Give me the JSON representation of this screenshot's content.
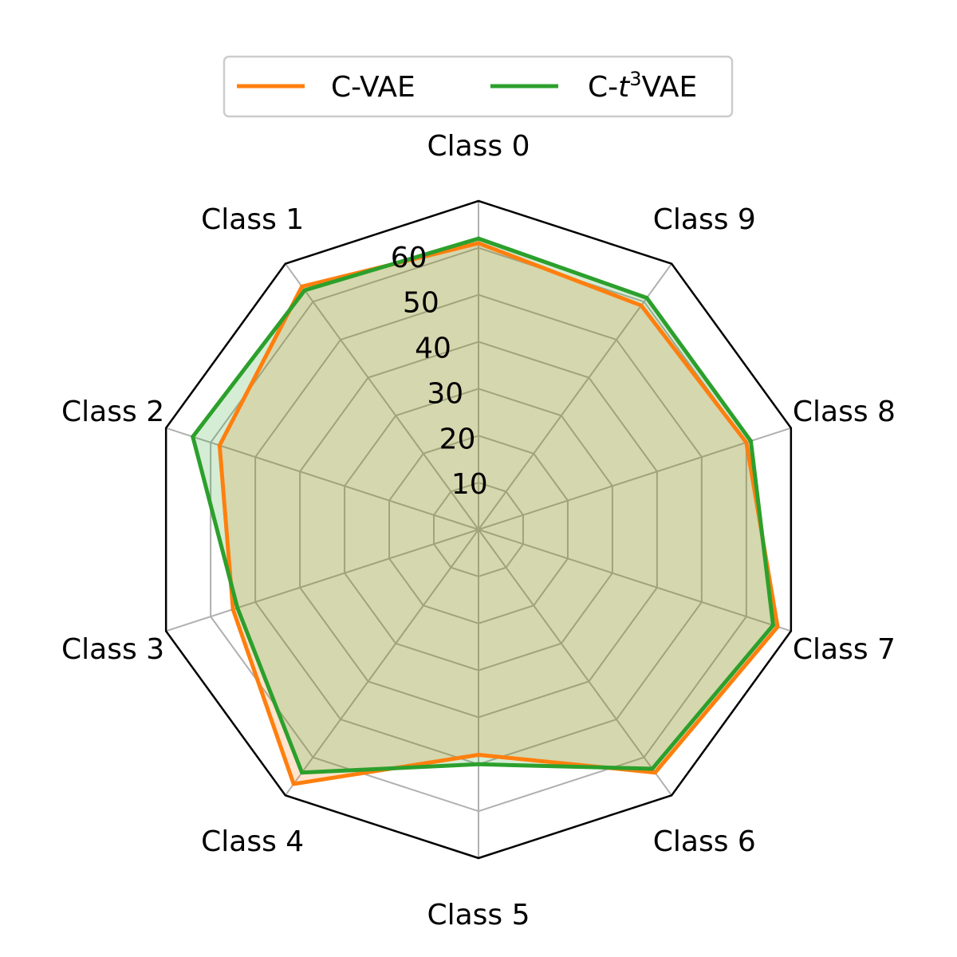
{
  "chart_data": {
    "type": "radar",
    "categories": [
      "Class 0",
      "Class 1",
      "Class 2",
      "Class 3",
      "Class 4",
      "Class 5",
      "Class 6",
      "Class 7",
      "Class 8",
      "Class 9"
    ],
    "series": [
      {
        "name": "C-VAE",
        "color": "#ff7f0e",
        "fill_color": "#ff7f0e",
        "values": [
          61,
          64,
          58,
          55,
          67,
          48,
          64,
          67,
          60,
          59
        ]
      },
      {
        "name": "C-t3VAE",
        "color": "#2ca02c",
        "fill_color": "#2ca02c",
        "values": [
          62,
          63,
          64,
          54,
          64,
          50,
          63,
          66,
          61,
          61
        ]
      }
    ],
    "legend_labels": {
      "cvae": "C-VAE",
      "t3_prefix": "C-",
      "t3_var": "t",
      "t3_sup": "3",
      "t3_suffix": "VAE"
    },
    "radial_ticks": [
      "10",
      "20",
      "30",
      "40",
      "50",
      "60"
    ],
    "radial_tick_values": [
      10,
      20,
      30,
      40,
      50,
      60
    ],
    "r_range": [
      0,
      70
    ],
    "frame": "polygon",
    "grid": true,
    "legend_position": "top-center"
  }
}
